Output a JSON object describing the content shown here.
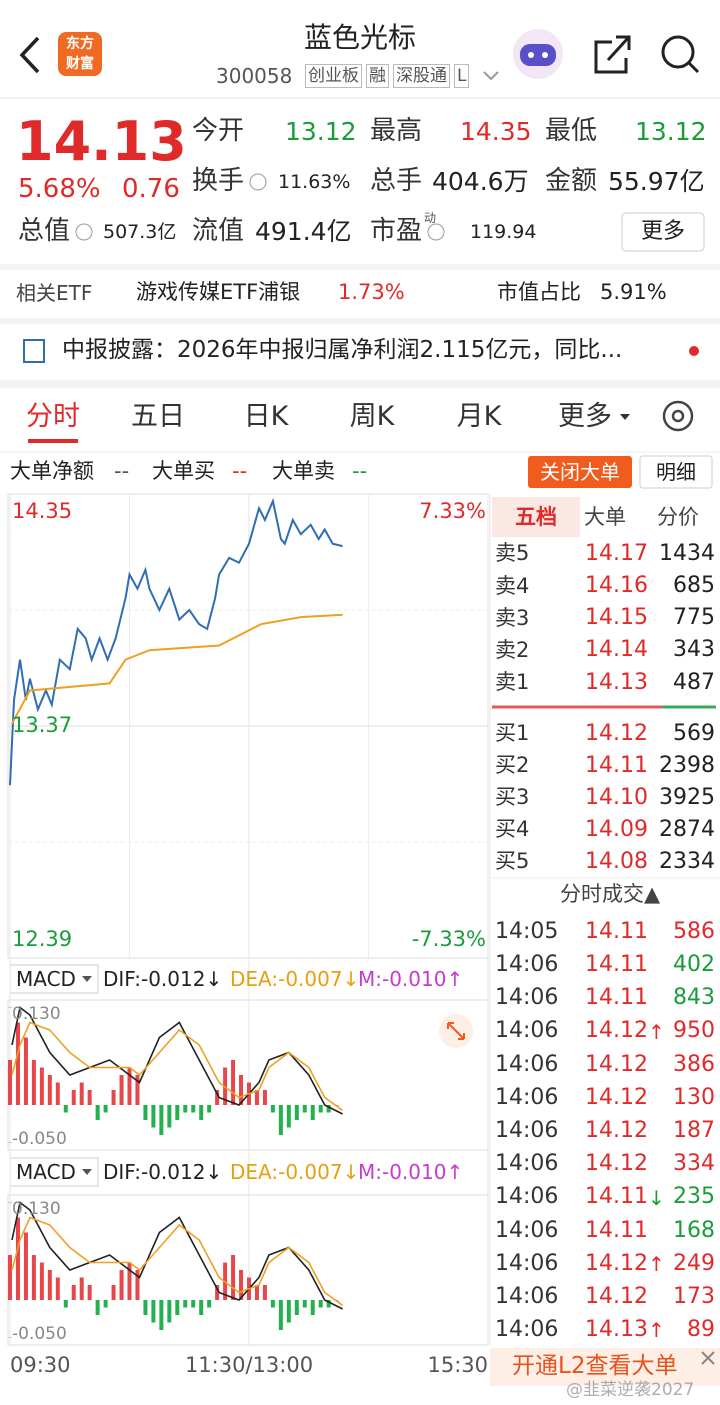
{
  "header": {
    "title": "蓝色光标",
    "code": "300058",
    "tags": [
      "创业板",
      "融",
      "深股通",
      "L"
    ],
    "logo": [
      "东方",
      "财富"
    ]
  },
  "quote": {
    "price": "14.13",
    "change_pct": "5.68%",
    "change": "0.76",
    "fields": [
      {
        "label": "今开",
        "value": "13.12",
        "color": "#1a9c3a"
      },
      {
        "label": "最高",
        "value": "14.35",
        "color": "#e02a2a"
      },
      {
        "label": "最低",
        "value": "13.12",
        "color": "#1a9c3a"
      },
      {
        "label": "换手",
        "value": "11.63%"
      },
      {
        "label": "总手",
        "value": "404.6万"
      },
      {
        "label": "金额",
        "value": "55.97亿"
      },
      {
        "label": "总值",
        "value": "507.3亿"
      },
      {
        "label": "流值",
        "value": "491.4亿"
      },
      {
        "label": "市盈",
        "value": "119.94",
        "sup": "动"
      }
    ],
    "more": "更多"
  },
  "etf": {
    "label": "相关ETF",
    "name": "游戏传媒ETF浦银",
    "change": "1.73%",
    "ratio_label": "市值占比",
    "ratio": "5.91%"
  },
  "notice": {
    "text": "中报披露：2026年中报归属净利润2.115亿元，同比..."
  },
  "tabs": [
    "分时",
    "五日",
    "日K",
    "周K",
    "月K",
    "更多"
  ],
  "bigorder": {
    "items": [
      {
        "label": "大单净额",
        "value": "--"
      },
      {
        "label": "大单买",
        "value": "--"
      },
      {
        "label": "大单卖",
        "value": "--"
      }
    ],
    "close": "关闭大单",
    "detail": "明细"
  },
  "chart_data": [
    {
      "type": "line",
      "xlim": [
        0,
        240
      ],
      "xticks": [
        {
          "value": 0,
          "label": "09:30"
        },
        {
          "value": 120,
          "label": "11:30/13:00"
        },
        {
          "value": 240,
          "label": "15:30"
        }
      ],
      "ylim": [
        12.39,
        14.35
      ],
      "yticks": [
        14.35,
        13.37,
        12.39
      ],
      "y2lim": [
        -7.33,
        7.33
      ],
      "y2ticks": [
        {
          "value": 7.33,
          "label": "7.33%"
        },
        {
          "value": -7.33,
          "label": "-7.33%"
        }
      ],
      "series": [
        {
          "color": "#2f6db5",
          "x": [
            0,
            2,
            5,
            8,
            10,
            14,
            18,
            21,
            25,
            30,
            34,
            38,
            41,
            45,
            49,
            53,
            58,
            60,
            64,
            68,
            70,
            75,
            80,
            85,
            90,
            95,
            99,
            103,
            105,
            110,
            115,
            120,
            125,
            128,
            132,
            136,
            138,
            142,
            146,
            151,
            155,
            158,
            162,
            167
          ],
          "values": [
            13.12,
            13.48,
            13.65,
            13.48,
            13.57,
            13.44,
            13.52,
            13.46,
            13.65,
            13.61,
            13.78,
            13.74,
            13.65,
            13.74,
            13.65,
            13.74,
            13.91,
            14.01,
            13.95,
            14.03,
            13.95,
            13.86,
            13.95,
            13.82,
            13.86,
            13.8,
            13.78,
            13.91,
            14.01,
            14.08,
            14.06,
            14.14,
            14.29,
            14.24,
            14.32,
            14.16,
            14.14,
            14.24,
            14.18,
            14.22,
            14.16,
            14.2,
            14.14,
            14.13
          ]
        },
        {
          "color": "#f0a020",
          "x": [
            1,
            10,
            50,
            58,
            70,
            105,
            126,
            146,
            167
          ],
          "values": [
            13.38,
            13.52,
            13.55,
            13.65,
            13.69,
            13.71,
            13.8,
            13.83,
            13.84
          ]
        }
      ]
    },
    {
      "type": "macd",
      "labels": {
        "name": "MACD",
        "dif": "DIF:-0.012↓",
        "dea": "DEA:-0.007↓",
        "m": "M:-0.010↑"
      },
      "xlim": [
        0,
        240
      ],
      "ylim": [
        -0.06,
        0.14
      ],
      "yticks": [
        {
          "value": 0.13,
          "label": "0.130"
        },
        {
          "value": -0.05,
          "label": "-0.050"
        }
      ],
      "bars": {
        "colors": [
          "#e8474a",
          "#22b14c"
        ],
        "x": [
          0,
          4,
          8,
          12,
          16,
          20,
          24,
          28,
          32,
          36,
          40,
          44,
          48,
          52,
          56,
          60,
          64,
          68,
          72,
          76,
          80,
          84,
          88,
          92,
          96,
          100,
          104,
          108,
          112,
          116,
          120,
          124,
          128,
          132,
          136,
          140,
          144,
          148,
          152,
          156,
          160,
          164
        ],
        "values": [
          0.06,
          0.11,
          0.09,
          0.06,
          0.05,
          0.04,
          0.03,
          -0.01,
          0.02,
          0.03,
          0.02,
          -0.02,
          -0.01,
          0.02,
          0.04,
          0.05,
          0.04,
          -0.02,
          -0.03,
          -0.04,
          -0.03,
          -0.02,
          -0.01,
          -0.01,
          -0.02,
          -0.01,
          0.02,
          0.05,
          0.06,
          0.04,
          0.03,
          0.02,
          0.02,
          -0.01,
          -0.04,
          -0.03,
          -0.02,
          -0.01,
          -0.02,
          -0.01,
          -0.01,
          0
        ]
      },
      "series": [
        {
          "color": "#222222",
          "x": [
            1,
            5,
            10,
            20,
            30,
            40,
            50,
            60,
            65,
            75,
            85,
            95,
            105,
            115,
            125,
            130,
            140,
            150,
            158,
            167
          ],
          "values": [
            0.08,
            0.13,
            0.12,
            0.07,
            0.04,
            0.05,
            0.06,
            0.04,
            0.03,
            0.09,
            0.11,
            0.06,
            0.01,
            0,
            0.03,
            0.06,
            0.07,
            0.04,
            0,
            -0.012
          ]
        },
        {
          "color": "#f0a020",
          "x": [
            1,
            5,
            10,
            20,
            30,
            40,
            50,
            60,
            65,
            75,
            85,
            95,
            105,
            115,
            125,
            130,
            140,
            150,
            158,
            167
          ],
          "values": [
            0.04,
            0.08,
            0.11,
            0.1,
            0.07,
            0.05,
            0.05,
            0.05,
            0.04,
            0.07,
            0.1,
            0.08,
            0.03,
            0.01,
            0.02,
            0.05,
            0.07,
            0.05,
            0.01,
            -0.007
          ]
        }
      ]
    }
  ],
  "orderbook": {
    "tabs": [
      "五档",
      "大单",
      "分价"
    ],
    "asks": [
      {
        "label": "卖5",
        "price": "14.17",
        "vol": "1434"
      },
      {
        "label": "卖4",
        "price": "14.16",
        "vol": "685"
      },
      {
        "label": "卖3",
        "price": "14.15",
        "vol": "775"
      },
      {
        "label": "卖2",
        "price": "14.14",
        "vol": "343"
      },
      {
        "label": "卖1",
        "price": "14.13",
        "vol": "487"
      }
    ],
    "bids": [
      {
        "label": "买1",
        "price": "14.12",
        "vol": "569"
      },
      {
        "label": "买2",
        "price": "14.11",
        "vol": "2398"
      },
      {
        "label": "买3",
        "price": "14.10",
        "vol": "3925"
      },
      {
        "label": "买4",
        "price": "14.09",
        "vol": "2874"
      },
      {
        "label": "买5",
        "price": "14.08",
        "vol": "2334"
      }
    ]
  },
  "trades": {
    "title": "分时成交▲",
    "rows": [
      {
        "time": "14:05",
        "price": "14.11",
        "vol": "586",
        "vol_color": "#e02a2a"
      },
      {
        "time": "14:06",
        "price": "14.11",
        "vol": "402",
        "vol_color": "#1a9c3a"
      },
      {
        "time": "14:06",
        "price": "14.11",
        "vol": "843",
        "vol_color": "#1a9c3a"
      },
      {
        "time": "14:06",
        "price": "14.12",
        "arrow": "↑",
        "vol": "950",
        "vol_color": "#e02a2a"
      },
      {
        "time": "14:06",
        "price": "14.12",
        "vol": "386",
        "vol_color": "#e02a2a"
      },
      {
        "time": "14:06",
        "price": "14.12",
        "vol": "130",
        "vol_color": "#e02a2a"
      },
      {
        "time": "14:06",
        "price": "14.12",
        "vol": "187",
        "vol_color": "#e02a2a"
      },
      {
        "time": "14:06",
        "price": "14.12",
        "vol": "334",
        "vol_color": "#e02a2a"
      },
      {
        "time": "14:06",
        "price": "14.11",
        "arrow": "↓",
        "vol": "235",
        "vol_color": "#1a9c3a"
      },
      {
        "time": "14:06",
        "price": "14.11",
        "vol": "168",
        "vol_color": "#1a9c3a"
      },
      {
        "time": "14:06",
        "price": "14.12",
        "arrow": "↑",
        "vol": "249",
        "vol_color": "#e02a2a"
      },
      {
        "time": "14:06",
        "price": "14.12",
        "vol": "173",
        "vol_color": "#e02a2a"
      },
      {
        "time": "14:06",
        "price": "14.13",
        "arrow": "↑",
        "vol": "89",
        "vol_color": "#e02a2a"
      }
    ]
  },
  "banner": "开通L2查看大单",
  "watermark": "@韭菜逆袭2027"
}
